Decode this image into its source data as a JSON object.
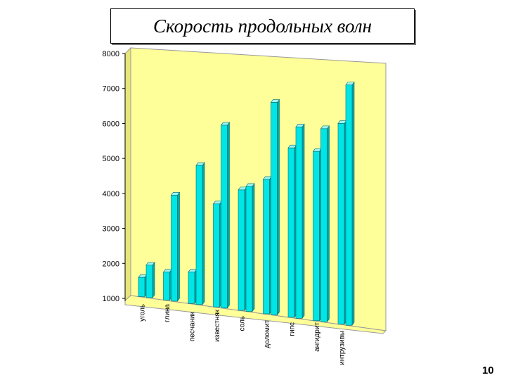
{
  "slide": {
    "title": "Скорость продольных волн",
    "page_number": "10"
  },
  "chart_data": {
    "type": "bar",
    "title": "",
    "xlabel": "",
    "ylabel": "",
    "ylim": [
      1000,
      8000
    ],
    "y_ticks": [
      "1000",
      "2000",
      "3000",
      "4000",
      "5000",
      "6000",
      "7000",
      "8000"
    ],
    "categories": [
      "уголь",
      "глина",
      "песчаник",
      "известняк",
      "соль",
      "доломит",
      "гипс",
      "ангидрит",
      "интрузивы"
    ],
    "series": [
      {
        "name": "",
        "values": [
          1600,
          1750,
          1750,
          3700,
          4100,
          4400,
          5300,
          5200,
          6000
        ]
      },
      {
        "name": "",
        "values": [
          1950,
          3950,
          4800,
          5950,
          4200,
          6600,
          5900,
          5850,
          7100
        ]
      }
    ],
    "bar_color": "#00e5e5",
    "wall_color": "#ffff99",
    "floor_color": "#ffff99",
    "grid": false,
    "legend": "none"
  }
}
